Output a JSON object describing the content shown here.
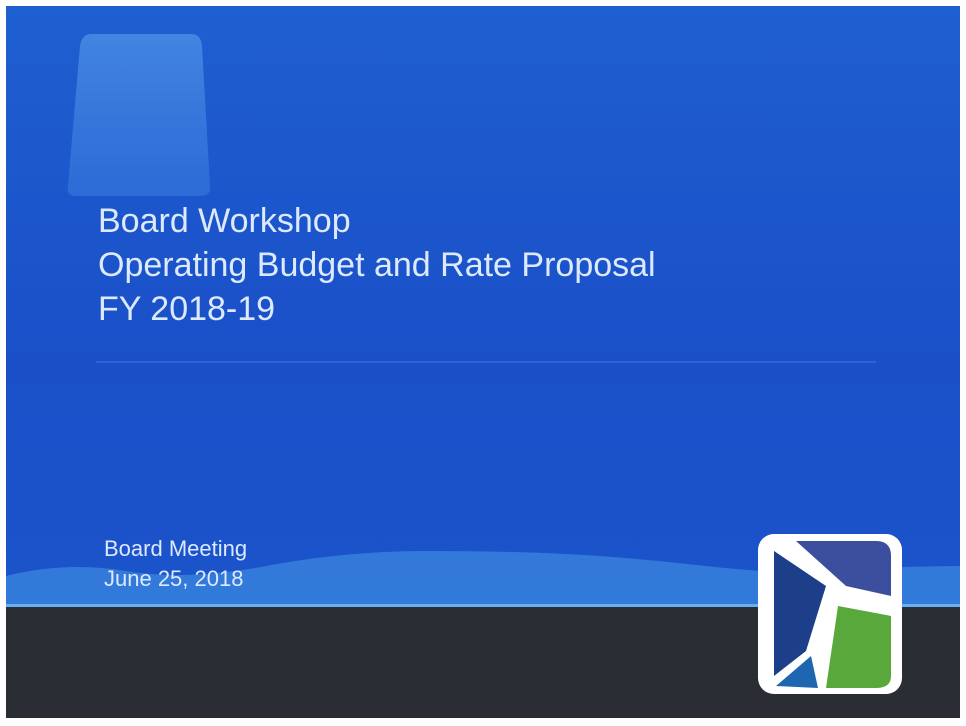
{
  "slide": {
    "title_lines": [
      "Board Workshop",
      "Operating Budget and Rate Proposal",
      "FY 2018-19"
    ],
    "subtitle_lines": [
      "Board Meeting",
      "June 25, 2018"
    ]
  }
}
